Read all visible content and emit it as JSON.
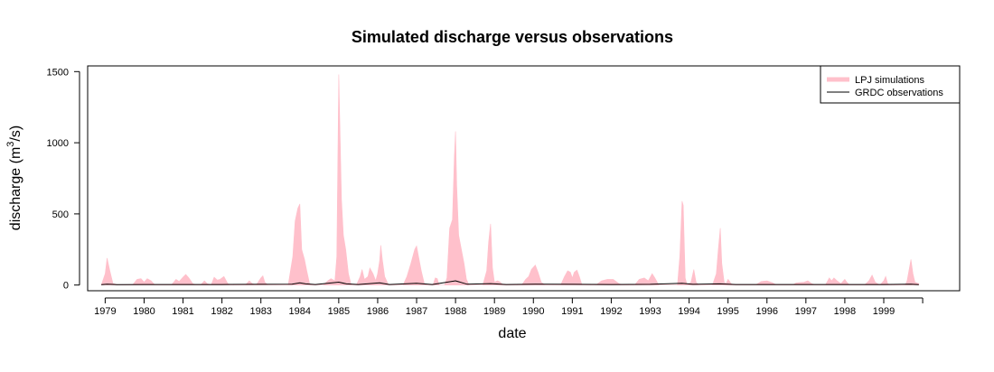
{
  "chart_data": {
    "type": "area",
    "title": "Simulated discharge versus observations",
    "xlabel": "date",
    "ylabel": "discharge (m",
    "ylabel_superscript": "3",
    "ylabel_suffix": "/s)",
    "xlim": [
      1978.55,
      2000.95
    ],
    "ylim": [
      -40,
      1540
    ],
    "yticks": [
      0,
      500,
      1000,
      1500
    ],
    "xtick_labels": [
      "1979",
      "1980",
      "1981",
      "1982",
      "1983",
      "1984",
      "1985",
      "1986",
      "1987",
      "1988",
      "1989",
      "1990",
      "1991",
      "1992",
      "1993",
      "1994",
      "1995",
      "1996",
      "1997",
      "1998",
      "1999"
    ],
    "grid": false,
    "legend_position": "top-right",
    "series": [
      {
        "name": "LPJ simulations",
        "color": "#ffc0cb",
        "style": "filled area",
        "points": [
          [
            1978.9,
            0
          ],
          [
            1979.0,
            80
          ],
          [
            1979.05,
            190
          ],
          [
            1979.12,
            100
          ],
          [
            1979.2,
            10
          ],
          [
            1979.35,
            0
          ],
          [
            1979.7,
            0
          ],
          [
            1979.82,
            40
          ],
          [
            1979.92,
            45
          ],
          [
            1980.0,
            20
          ],
          [
            1980.08,
            45
          ],
          [
            1980.18,
            30
          ],
          [
            1980.28,
            0
          ],
          [
            1980.7,
            0
          ],
          [
            1980.82,
            40
          ],
          [
            1980.9,
            25
          ],
          [
            1981.0,
            55
          ],
          [
            1981.07,
            75
          ],
          [
            1981.15,
            50
          ],
          [
            1981.25,
            10
          ],
          [
            1981.35,
            0
          ],
          [
            1981.45,
            0
          ],
          [
            1981.55,
            30
          ],
          [
            1981.62,
            10
          ],
          [
            1981.72,
            0
          ],
          [
            1981.8,
            55
          ],
          [
            1981.88,
            35
          ],
          [
            1981.95,
            40
          ],
          [
            1982.05,
            60
          ],
          [
            1982.15,
            10
          ],
          [
            1982.25,
            0
          ],
          [
            1982.6,
            0
          ],
          [
            1982.7,
            30
          ],
          [
            1982.78,
            10
          ],
          [
            1982.88,
            0
          ],
          [
            1983.0,
            50
          ],
          [
            1983.05,
            65
          ],
          [
            1983.1,
            20
          ],
          [
            1983.18,
            0
          ],
          [
            1983.7,
            0
          ],
          [
            1983.82,
            200
          ],
          [
            1983.88,
            450
          ],
          [
            1983.95,
            540
          ],
          [
            1984.0,
            570
          ],
          [
            1984.05,
            250
          ],
          [
            1984.12,
            180
          ],
          [
            1984.18,
            100
          ],
          [
            1984.25,
            10
          ],
          [
            1984.35,
            0
          ],
          [
            1984.6,
            0
          ],
          [
            1984.72,
            30
          ],
          [
            1984.8,
            45
          ],
          [
            1984.9,
            30
          ],
          [
            1984.95,
            200
          ],
          [
            1985.0,
            1480
          ],
          [
            1985.03,
            1100
          ],
          [
            1985.07,
            600
          ],
          [
            1985.12,
            350
          ],
          [
            1985.18,
            250
          ],
          [
            1985.25,
            80
          ],
          [
            1985.32,
            0
          ],
          [
            1985.45,
            0
          ],
          [
            1985.55,
            60
          ],
          [
            1985.6,
            110
          ],
          [
            1985.66,
            40
          ],
          [
            1985.75,
            60
          ],
          [
            1985.8,
            120
          ],
          [
            1985.88,
            80
          ],
          [
            1985.95,
            30
          ],
          [
            1986.0,
            80
          ],
          [
            1986.05,
            170
          ],
          [
            1986.08,
            280
          ],
          [
            1986.12,
            180
          ],
          [
            1986.18,
            60
          ],
          [
            1986.28,
            0
          ],
          [
            1986.65,
            0
          ],
          [
            1986.75,
            60
          ],
          [
            1986.85,
            150
          ],
          [
            1986.95,
            250
          ],
          [
            1987.0,
            275
          ],
          [
            1987.05,
            200
          ],
          [
            1987.12,
            100
          ],
          [
            1987.2,
            10
          ],
          [
            1987.28,
            0
          ],
          [
            1987.42,
            0
          ],
          [
            1987.48,
            50
          ],
          [
            1987.53,
            45
          ],
          [
            1987.58,
            0
          ],
          [
            1987.72,
            0
          ],
          [
            1987.78,
            50
          ],
          [
            1987.85,
            400
          ],
          [
            1987.92,
            460
          ],
          [
            1987.97,
            900
          ],
          [
            1988.0,
            1080
          ],
          [
            1988.03,
            700
          ],
          [
            1988.08,
            350
          ],
          [
            1988.15,
            250
          ],
          [
            1988.22,
            150
          ],
          [
            1988.28,
            40
          ],
          [
            1988.35,
            0
          ],
          [
            1988.7,
            0
          ],
          [
            1988.8,
            100
          ],
          [
            1988.85,
            300
          ],
          [
            1988.9,
            430
          ],
          [
            1988.95,
            120
          ],
          [
            1989.0,
            20
          ],
          [
            1989.08,
            30
          ],
          [
            1989.15,
            20
          ],
          [
            1989.22,
            0
          ],
          [
            1989.7,
            0
          ],
          [
            1989.8,
            40
          ],
          [
            1989.88,
            60
          ],
          [
            1989.95,
            110
          ],
          [
            1990.05,
            140
          ],
          [
            1990.12,
            90
          ],
          [
            1990.2,
            20
          ],
          [
            1990.3,
            0
          ],
          [
            1990.7,
            0
          ],
          [
            1990.8,
            60
          ],
          [
            1990.88,
            100
          ],
          [
            1990.95,
            90
          ],
          [
            1991.0,
            50
          ],
          [
            1991.05,
            90
          ],
          [
            1991.12,
            105
          ],
          [
            1991.18,
            60
          ],
          [
            1991.25,
            0
          ],
          [
            1991.6,
            0
          ],
          [
            1991.75,
            30
          ],
          [
            1991.9,
            40
          ],
          [
            1992.05,
            40
          ],
          [
            1992.2,
            10
          ],
          [
            1992.3,
            0
          ],
          [
            1992.6,
            0
          ],
          [
            1992.72,
            40
          ],
          [
            1992.85,
            50
          ],
          [
            1992.95,
            30
          ],
          [
            1993.05,
            80
          ],
          [
            1993.12,
            50
          ],
          [
            1993.22,
            0
          ],
          [
            1993.7,
            0
          ],
          [
            1993.76,
            200
          ],
          [
            1993.82,
            590
          ],
          [
            1993.85,
            560
          ],
          [
            1993.9,
            50
          ],
          [
            1993.95,
            0
          ],
          [
            1994.05,
            20
          ],
          [
            1994.12,
            110
          ],
          [
            1994.18,
            20
          ],
          [
            1994.25,
            0
          ],
          [
            1994.6,
            0
          ],
          [
            1994.7,
            80
          ],
          [
            1994.75,
            250
          ],
          [
            1994.8,
            400
          ],
          [
            1994.84,
            150
          ],
          [
            1994.9,
            20
          ],
          [
            1994.95,
            10
          ],
          [
            1995.0,
            40
          ],
          [
            1995.08,
            10
          ],
          [
            1995.15,
            0
          ],
          [
            1995.7,
            0
          ],
          [
            1995.85,
            25
          ],
          [
            1996.0,
            30
          ],
          [
            1996.15,
            15
          ],
          [
            1996.25,
            0
          ],
          [
            1996.65,
            0
          ],
          [
            1996.75,
            15
          ],
          [
            1996.95,
            20
          ],
          [
            1997.05,
            30
          ],
          [
            1997.15,
            10
          ],
          [
            1997.25,
            0
          ],
          [
            1997.5,
            0
          ],
          [
            1997.6,
            50
          ],
          [
            1997.66,
            30
          ],
          [
            1997.72,
            50
          ],
          [
            1997.8,
            30
          ],
          [
            1997.9,
            10
          ],
          [
            1998.0,
            40
          ],
          [
            1998.05,
            20
          ],
          [
            1998.12,
            0
          ],
          [
            1998.5,
            0
          ],
          [
            1998.62,
            30
          ],
          [
            1998.7,
            70
          ],
          [
            1998.78,
            20
          ],
          [
            1998.9,
            0
          ],
          [
            1999.0,
            30
          ],
          [
            1999.05,
            60
          ],
          [
            1999.1,
            10
          ],
          [
            1999.18,
            0
          ],
          [
            1999.55,
            0
          ],
          [
            1999.6,
            30
          ],
          [
            1999.7,
            180
          ],
          [
            1999.75,
            80
          ],
          [
            1999.8,
            20
          ],
          [
            1999.9,
            10
          ]
        ]
      },
      {
        "name": "GRDC observations",
        "color": "#000000",
        "style": "line",
        "points": [
          [
            1978.9,
            3
          ],
          [
            1979.05,
            6
          ],
          [
            1979.3,
            3
          ],
          [
            1980.0,
            4
          ],
          [
            1981.0,
            4
          ],
          [
            1982.0,
            4
          ],
          [
            1983.0,
            5
          ],
          [
            1983.8,
            6
          ],
          [
            1984.0,
            15
          ],
          [
            1984.15,
            8
          ],
          [
            1984.4,
            4
          ],
          [
            1985.0,
            20
          ],
          [
            1985.2,
            8
          ],
          [
            1985.5,
            4
          ],
          [
            1986.05,
            15
          ],
          [
            1986.3,
            4
          ],
          [
            1987.0,
            12
          ],
          [
            1987.4,
            4
          ],
          [
            1988.0,
            30
          ],
          [
            1988.3,
            6
          ],
          [
            1988.9,
            10
          ],
          [
            1989.3,
            4
          ],
          [
            1990.05,
            6
          ],
          [
            1991.05,
            5
          ],
          [
            1992.0,
            4
          ],
          [
            1993.0,
            5
          ],
          [
            1993.82,
            12
          ],
          [
            1994.1,
            5
          ],
          [
            1994.78,
            8
          ],
          [
            1995.2,
            4
          ],
          [
            1996.0,
            4
          ],
          [
            1997.0,
            4
          ],
          [
            1998.0,
            4
          ],
          [
            1999.0,
            4
          ],
          [
            1999.7,
            6
          ],
          [
            1999.9,
            3
          ]
        ]
      }
    ]
  }
}
